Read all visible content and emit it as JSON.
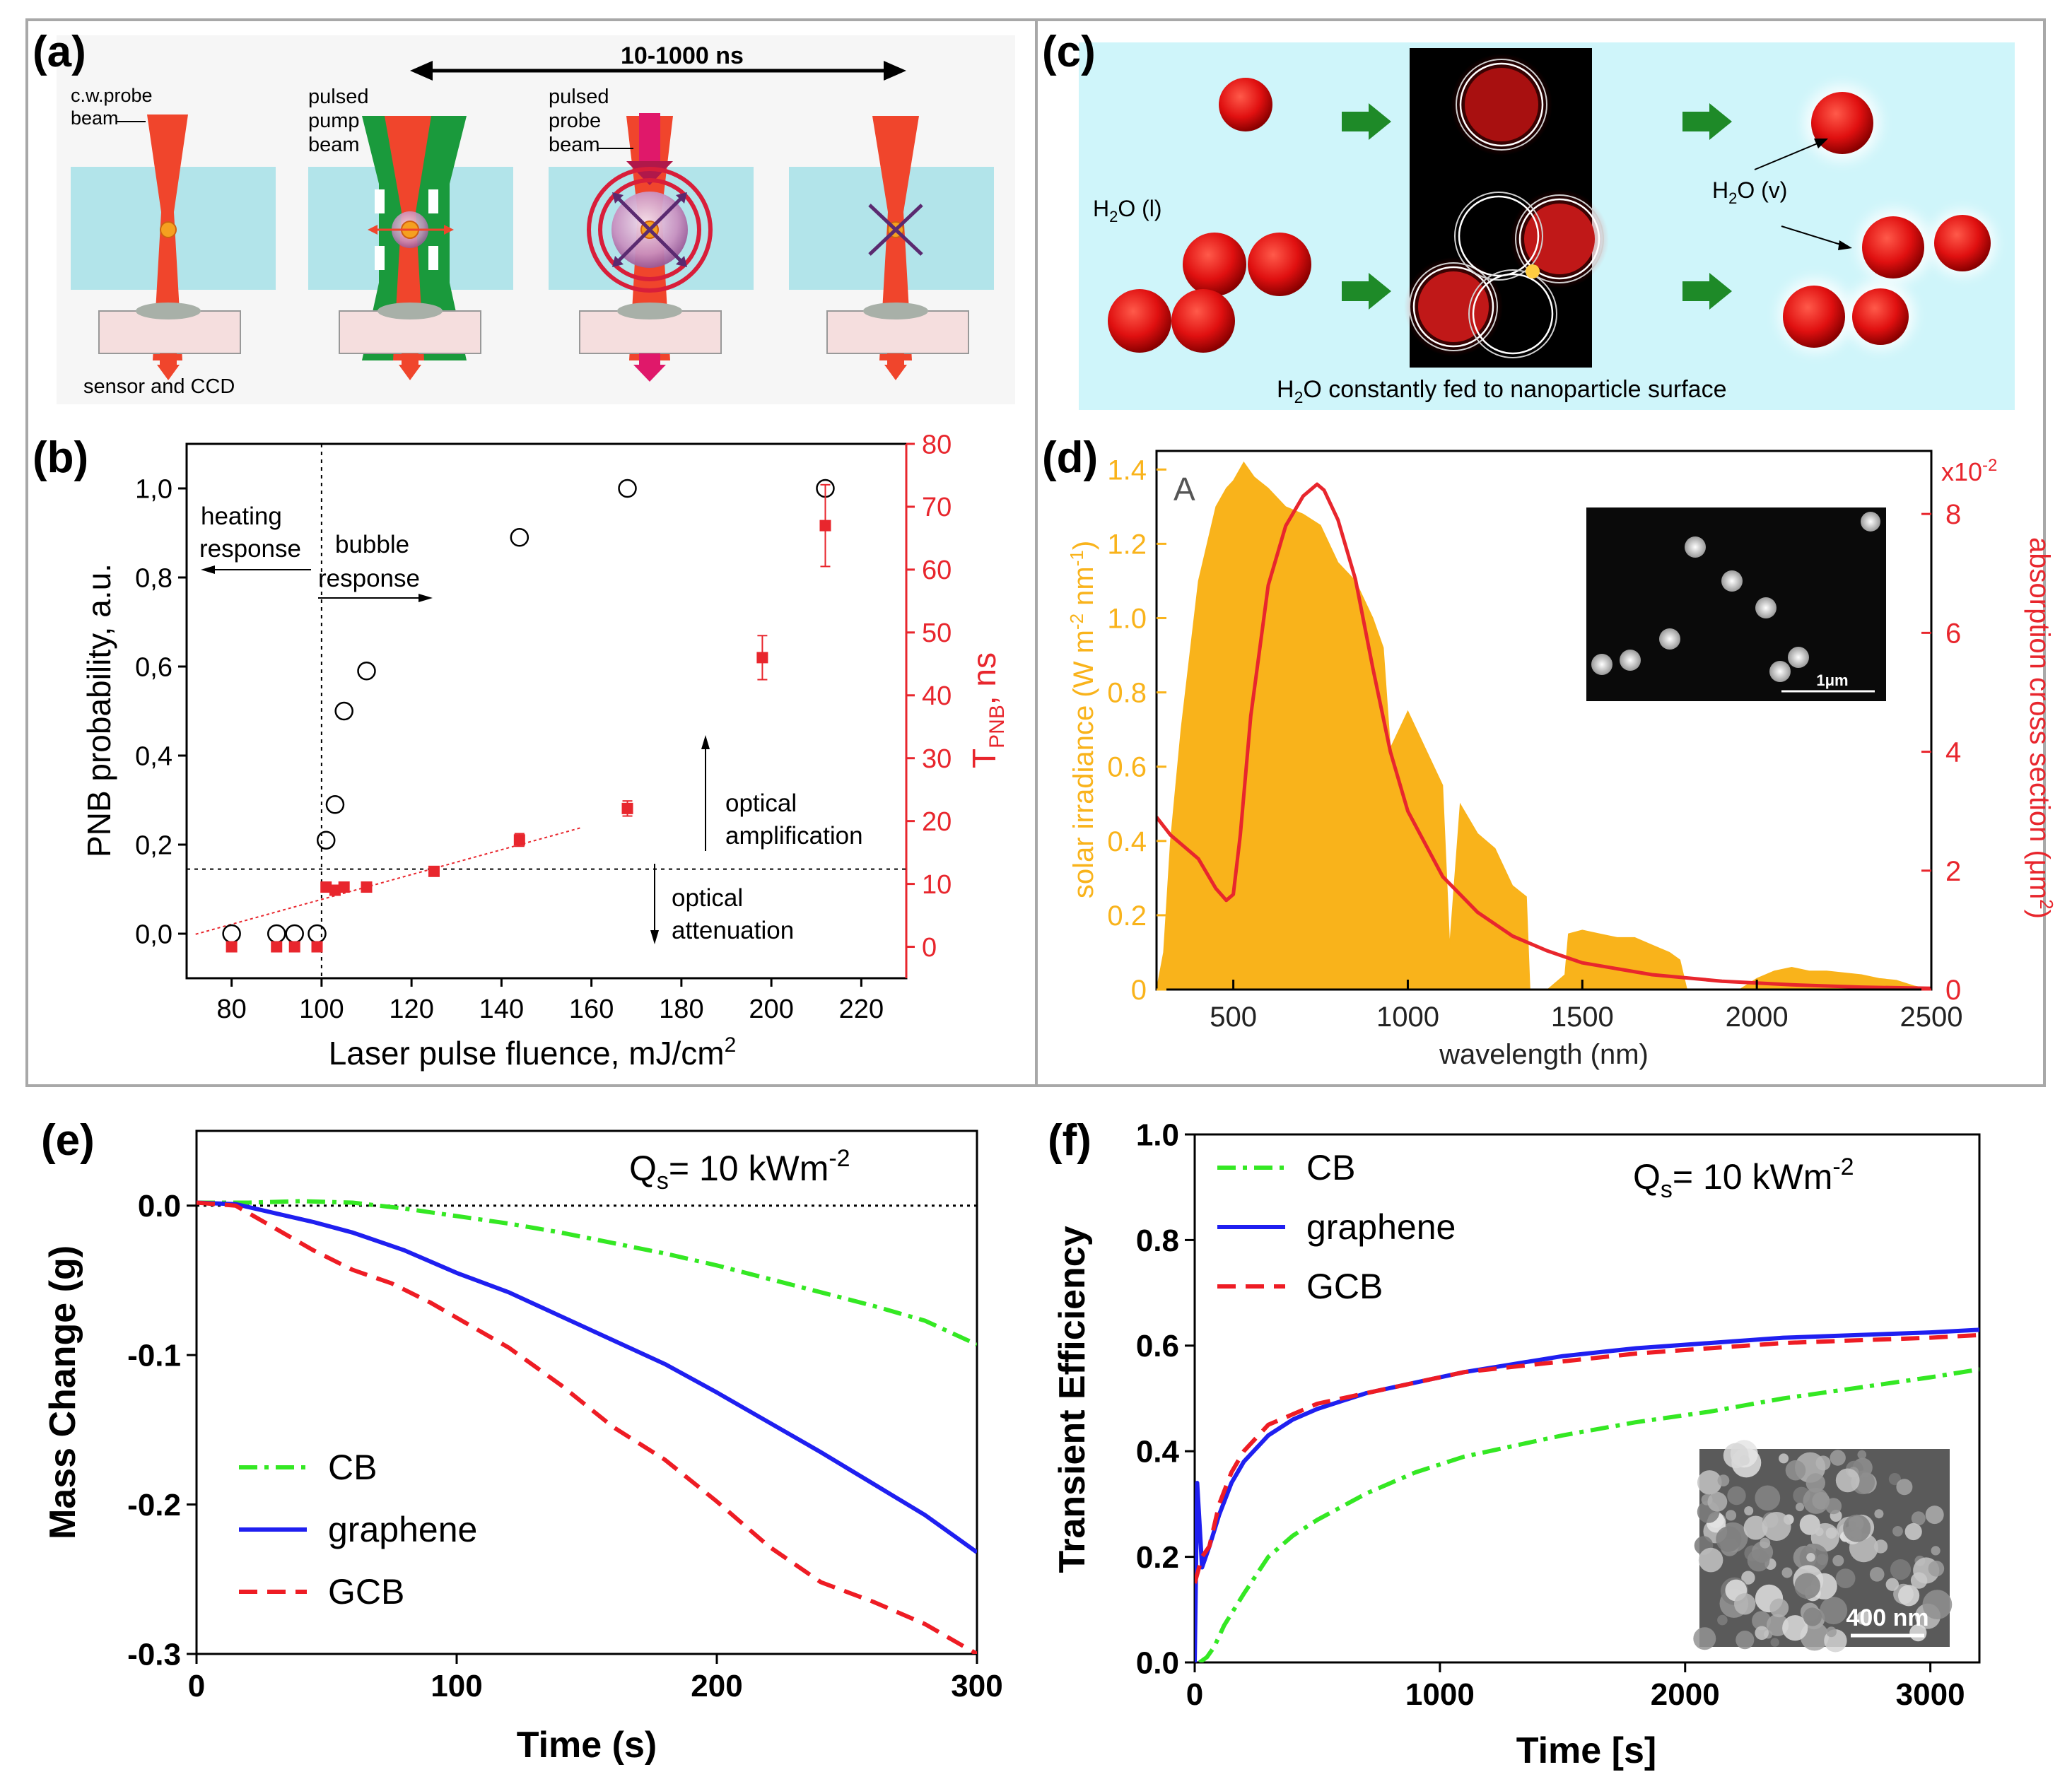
{
  "figure": {
    "panel_labels": [
      "(a)",
      "(b)",
      "(c)",
      "(d)",
      "(e)",
      "(f)"
    ]
  },
  "panel_a": {
    "timing": "10-1000 ns",
    "labels": {
      "cw_probe_1": "c.w.probe",
      "cw_probe_2": "beam",
      "pump_1": "pulsed",
      "pump_2": "pump",
      "pump_3": "beam",
      "pprobe_1": "pulsed",
      "pprobe_2": "probe",
      "pprobe_3": "beam",
      "sensor": "sensor and CCD"
    }
  },
  "panel_c": {
    "water_liquid_main": "H",
    "water_liquid_sub": "2",
    "water_liquid_rest": "O (l)",
    "water_vapor_main": "H",
    "water_vapor_sub": "2",
    "water_vapor_rest": "O (v)",
    "caption_main": "H",
    "caption_sub": "2",
    "caption_rest": "O constantly fed to nanoparticle surface"
  },
  "chart_data": [
    {
      "id": "b",
      "type": "scatter",
      "xlabel_main": "Laser pulse fluence, mJ/cm",
      "xlabel_sup": "2",
      "ylabel": "PNB probability, a.u.",
      "ylabel_right_main": "T",
      "ylabel_right_sub": "PNB",
      "ylabel_right_rest": ", ns",
      "xlim": [
        70,
        230
      ],
      "ylim": [
        -0.1,
        1.1
      ],
      "ylim_right": [
        -5,
        80
      ],
      "x_ticks": [
        80,
        100,
        120,
        140,
        160,
        180,
        200,
        220
      ],
      "x_tick_labels": [
        "80",
        "100",
        "120",
        "140",
        "160",
        "180",
        "200",
        "220"
      ],
      "y_ticks": [
        0,
        0.2,
        0.4,
        0.6,
        0.8,
        1.0
      ],
      "y_tick_labels": [
        "0,0",
        "0,2",
        "0,4",
        "0,6",
        "0,8",
        "1,0"
      ],
      "y_right_ticks": [
        0,
        10,
        20,
        30,
        40,
        50,
        60,
        70,
        80
      ],
      "y_right_tick_labels": [
        "0",
        "10",
        "20",
        "30",
        "40",
        "50",
        "60",
        "70",
        "80"
      ],
      "series": [
        {
          "name": "PNB probability",
          "color": "#000000",
          "x": [
            80,
            90,
            94,
            99,
            101,
            103,
            105,
            110,
            144,
            168,
            212
          ],
          "y": [
            0,
            0,
            0,
            0,
            0.21,
            0.29,
            0.5,
            0.59,
            0.89,
            1.0,
            1.0
          ]
        },
        {
          "name": "T_PNB",
          "color": "#e8262d",
          "axis": "right",
          "x": [
            80,
            90,
            94,
            99,
            101,
            103,
            105,
            110,
            125,
            144,
            168,
            198,
            212
          ],
          "y": [
            0,
            0,
            0,
            0,
            9.5,
            9,
            9.5,
            9.5,
            12,
            17,
            22,
            46,
            67
          ],
          "err": [
            0,
            0,
            0,
            0,
            0.5,
            0.5,
            0.5,
            0.5,
            0.7,
            1,
            1.2,
            3.5,
            6.5
          ]
        }
      ],
      "fit_line": {
        "x": [
          72,
          158
        ],
        "y": [
          2,
          19
        ]
      },
      "ref_lines": {
        "x": 100,
        "y": 0.145
      },
      "annotations": {
        "heating": [
          "heating",
          "response"
        ],
        "bubble": [
          "bubble",
          "response"
        ],
        "amplification": [
          "optical",
          "amplification"
        ],
        "attenuation": [
          "optical",
          "attenuation"
        ]
      }
    },
    {
      "id": "d",
      "type": "area",
      "xlabel": "wavelength (nm)",
      "ylabel_main": "solar irradiance (W m",
      "ylabel_sup1": "-2",
      "ylabel_mid": " nm",
      "ylabel_sup2": "-1",
      "ylabel_end": ")",
      "ylabel_right_main": "absorption cross section (μm",
      "ylabel_right_sup": "2",
      "ylabel_right_end": ")",
      "right_scale_main": "x10",
      "right_scale_sup": "-2",
      "corner_label": "A",
      "inset_scale": "1μm",
      "xlim": [
        280,
        2500
      ],
      "ylim": [
        0,
        1.45
      ],
      "ylim_right": [
        0,
        9.06
      ],
      "x_ticks": [
        500,
        1000,
        1500,
        2000,
        2500
      ],
      "x_tick_labels": [
        "500",
        "1000",
        "1500",
        "2000",
        "2500"
      ],
      "y_ticks": [
        0,
        0.2,
        0.4,
        0.6,
        0.8,
        1.0,
        1.2,
        1.4
      ],
      "y_tick_labels": [
        "0",
        "0.2",
        "0.4",
        "0.6",
        "0.8",
        "1.0",
        "1.2",
        "1.4"
      ],
      "y_right_ticks": [
        0,
        2,
        4,
        6,
        8
      ],
      "y_right_tick_labels": [
        "0",
        "2",
        "4",
        "6",
        "8"
      ],
      "series": [
        {
          "name": "solar irradiance",
          "color": "#f9b31b",
          "x": [
            280,
            300,
            320,
            350,
            400,
            450,
            480,
            500,
            530,
            560,
            600,
            650,
            700,
            750,
            800,
            850,
            900,
            930,
            950,
            1000,
            1050,
            1100,
            1120,
            1150,
            1200,
            1250,
            1300,
            1340,
            1350,
            1360,
            1400,
            1450,
            1460,
            1500,
            1550,
            1600,
            1650,
            1700,
            1750,
            1780,
            1800,
            1950,
            2000,
            2050,
            2100,
            2150,
            2200,
            2250,
            2300,
            2350,
            2400,
            2450,
            2500
          ],
          "y": [
            0,
            0.1,
            0.4,
            0.7,
            1.1,
            1.3,
            1.35,
            1.37,
            1.42,
            1.38,
            1.35,
            1.3,
            1.28,
            1.25,
            1.15,
            1.1,
            1.0,
            0.92,
            0.65,
            0.75,
            0.65,
            0.55,
            0.12,
            0.5,
            0.42,
            0.38,
            0.28,
            0.25,
            0,
            0,
            0,
            0.04,
            0.15,
            0.16,
            0.15,
            0.14,
            0.14,
            0.12,
            0.1,
            0.08,
            0,
            0,
            0.03,
            0.05,
            0.06,
            0.05,
            0.05,
            0.045,
            0.04,
            0.03,
            0.025,
            0.01,
            0
          ]
        },
        {
          "name": "absorption cross section",
          "color": "#e8262d",
          "axis": "right",
          "x": [
            280,
            320,
            360,
            400,
            450,
            480,
            500,
            520,
            550,
            600,
            650,
            700,
            740,
            760,
            800,
            850,
            900,
            950,
            1000,
            1100,
            1200,
            1300,
            1400,
            1500,
            1700,
            1900,
            2100,
            2300,
            2500
          ],
          "y": [
            2.9,
            2.6,
            2.4,
            2.2,
            1.7,
            1.5,
            1.6,
            2.6,
            4.6,
            6.8,
            7.8,
            8.3,
            8.5,
            8.4,
            7.9,
            6.9,
            5.4,
            4.0,
            3.0,
            1.9,
            1.3,
            0.9,
            0.65,
            0.45,
            0.25,
            0.14,
            0.08,
            0.04,
            0.02
          ]
        }
      ]
    },
    {
      "id": "e",
      "type": "line",
      "title_main": "Q",
      "title_sub": "s",
      "title_rest": "= 10 kWm",
      "title_sup": "-2",
      "xlabel": "Time (s)",
      "ylabel": "Mass Change (g)",
      "xlim": [
        0,
        300
      ],
      "ylim": [
        -0.3,
        0.05
      ],
      "x_ticks": [
        0,
        100,
        200,
        300
      ],
      "x_tick_labels": [
        "0",
        "100",
        "200",
        "300"
      ],
      "y_ticks": [
        0,
        -0.1,
        -0.2,
        -0.3
      ],
      "y_tick_labels": [
        "0.0",
        "-0.1",
        "-0.2",
        "-0.3"
      ],
      "legend_position": "bottom-left",
      "series": [
        {
          "name": "CB",
          "color": "#34e823",
          "style": "dashdot",
          "x": [
            0,
            20,
            40,
            60,
            80,
            100,
            120,
            140,
            160,
            180,
            200,
            220,
            240,
            260,
            280,
            300
          ],
          "y": [
            0.002,
            0.002,
            0.003,
            0.002,
            -0.002,
            -0.007,
            -0.012,
            -0.018,
            -0.025,
            -0.032,
            -0.04,
            -0.049,
            -0.058,
            -0.067,
            -0.077,
            -0.093
          ]
        },
        {
          "name": "graphene",
          "color": "#1f1ff0",
          "style": "solid",
          "x": [
            0,
            15,
            30,
            45,
            60,
            80,
            100,
            120,
            140,
            160,
            180,
            200,
            220,
            240,
            260,
            280,
            300
          ],
          "y": [
            0.002,
            0.001,
            -0.005,
            -0.011,
            -0.018,
            -0.03,
            -0.045,
            -0.058,
            -0.074,
            -0.09,
            -0.106,
            -0.125,
            -0.145,
            -0.165,
            -0.186,
            -0.207,
            -0.232
          ]
        },
        {
          "name": "GCB",
          "color": "#ee1c24",
          "style": "dashed",
          "x": [
            0,
            15,
            30,
            45,
            60,
            75,
            90,
            100,
            120,
            140,
            160,
            180,
            200,
            220,
            240,
            260,
            280,
            300
          ],
          "y": [
            0.002,
            0.0,
            -0.015,
            -0.03,
            -0.043,
            -0.052,
            -0.065,
            -0.075,
            -0.095,
            -0.12,
            -0.148,
            -0.17,
            -0.198,
            -0.228,
            -0.252,
            -0.265,
            -0.28,
            -0.3
          ]
        }
      ]
    },
    {
      "id": "f",
      "type": "line",
      "title_main": "Q",
      "title_sub": "s",
      "title_rest": "= 10 kWm",
      "title_sup": "-2",
      "xlabel": "Time [s]",
      "ylabel": "Transient Efficiency",
      "inset_scale": "400 nm",
      "xlim": [
        0,
        3200
      ],
      "ylim": [
        0,
        1.0
      ],
      "x_ticks": [
        0,
        1000,
        2000,
        3000
      ],
      "x_tick_labels": [
        "0",
        "1000",
        "2000",
        "3000"
      ],
      "y_ticks": [
        0,
        0.2,
        0.4,
        0.6,
        0.8,
        1.0
      ],
      "y_tick_labels": [
        "0.0",
        "0.2",
        "0.4",
        "0.6",
        "0.8",
        "1.0"
      ],
      "legend_position": "top-left",
      "series": [
        {
          "name": "CB",
          "color": "#34e823",
          "style": "dashdot",
          "x": [
            20,
            50,
            80,
            120,
            200,
            300,
            400,
            500,
            700,
            900,
            1100,
            1300,
            1500,
            1800,
            2100,
            2400,
            2700,
            3000,
            3200
          ],
          "y": [
            0,
            0.01,
            0.03,
            0.07,
            0.13,
            0.2,
            0.24,
            0.27,
            0.32,
            0.36,
            0.39,
            0.41,
            0.43,
            0.455,
            0.475,
            0.5,
            0.52,
            0.54,
            0.555
          ]
        },
        {
          "name": "graphene",
          "color": "#1f1ff0",
          "style": "solid",
          "x": [
            0,
            10,
            30,
            60,
            100,
            150,
            200,
            300,
            400,
            500,
            700,
            900,
            1100,
            1300,
            1500,
            1800,
            2100,
            2400,
            2700,
            3000,
            3200
          ],
          "y": [
            0,
            0.34,
            0.18,
            0.22,
            0.28,
            0.34,
            0.38,
            0.43,
            0.46,
            0.48,
            0.51,
            0.53,
            0.55,
            0.565,
            0.58,
            0.595,
            0.605,
            0.615,
            0.62,
            0.625,
            0.63
          ]
        },
        {
          "name": "GCB",
          "color": "#ee1c24",
          "style": "dashed",
          "x": [
            0,
            30,
            60,
            100,
            150,
            200,
            300,
            400,
            500,
            700,
            900,
            1100,
            1300,
            1500,
            1800,
            2100,
            2400,
            2700,
            3000,
            3200
          ],
          "y": [
            0.15,
            0.2,
            0.22,
            0.3,
            0.36,
            0.4,
            0.45,
            0.47,
            0.49,
            0.51,
            0.53,
            0.55,
            0.56,
            0.57,
            0.585,
            0.595,
            0.605,
            0.61,
            0.615,
            0.62
          ]
        }
      ]
    }
  ]
}
